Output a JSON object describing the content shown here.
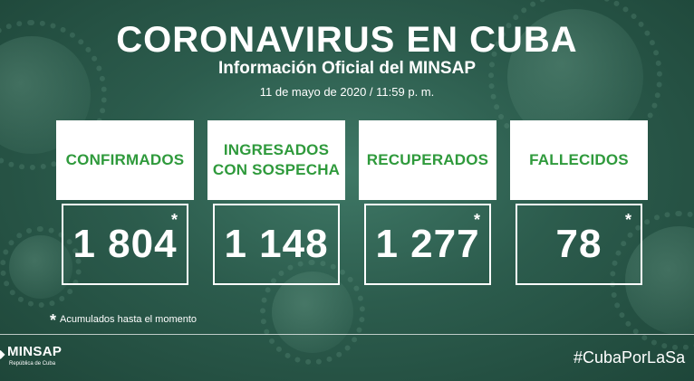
{
  "header": {
    "title": "CORONAVIRUS EN CUBA",
    "subtitle": "Información Oficial del MINSAP",
    "date": "11 de mayo de 2020 / 11:59 p. m."
  },
  "cards": [
    {
      "label": "CONFIRMADOS",
      "value": "1 804",
      "star": "*"
    },
    {
      "label": "INGRESADOS\nCON SOSPECHA",
      "value": "1 148",
      "star": ""
    },
    {
      "label": "RECUPERADOS",
      "value": "1 277",
      "star": "*"
    },
    {
      "label": "FALLECIDOS",
      "value": "78",
      "star": "*"
    }
  ],
  "footnote": {
    "star": "*",
    "text": "Acumulados hasta el momento"
  },
  "footer": {
    "logo_text": "MINSAP",
    "logo_subtext": "República de Cuba",
    "hashtag": "#CubaPorLaSa"
  },
  "colors": {
    "background": "#2c5c4d",
    "card_label": "#2f9a3c",
    "card_head": "#ffffff"
  }
}
